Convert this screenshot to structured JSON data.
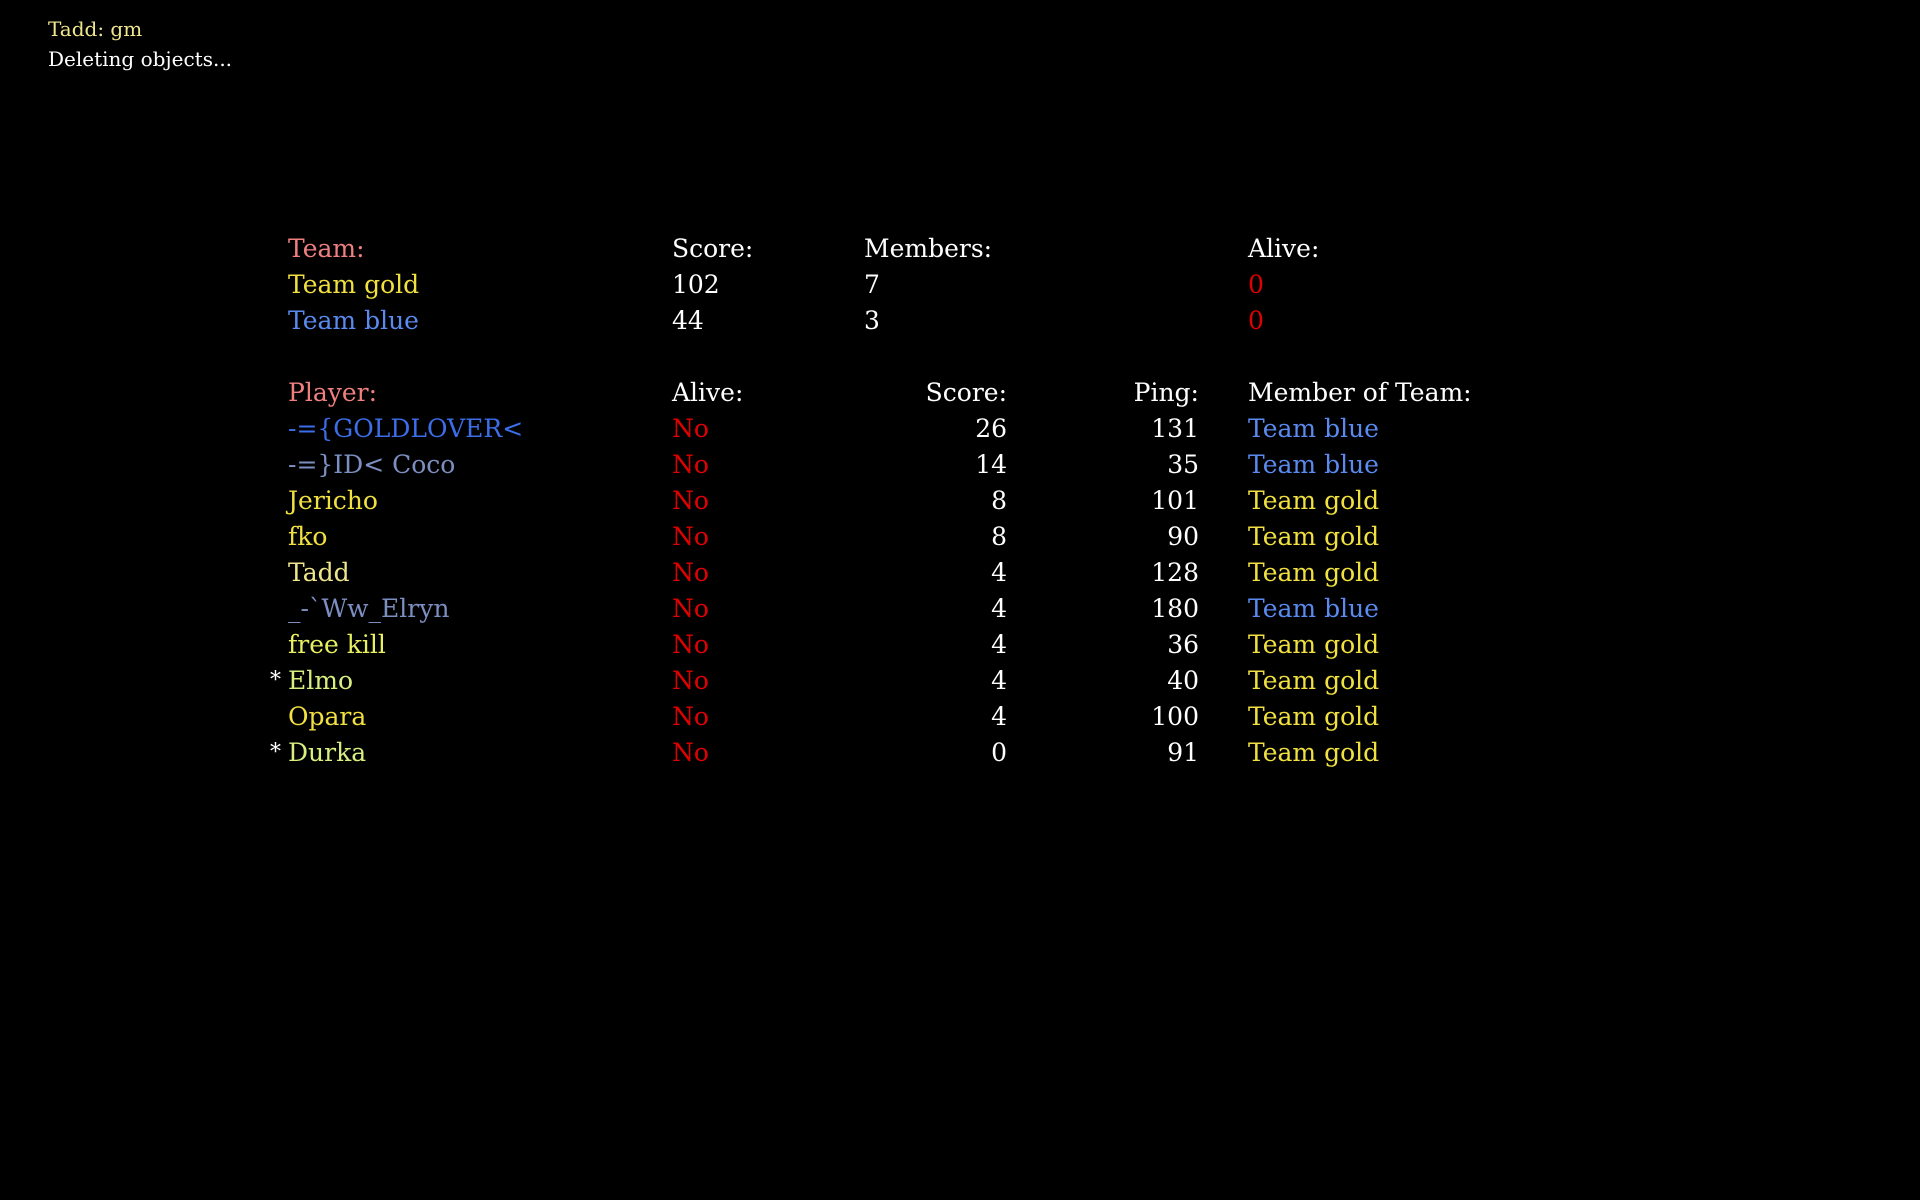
{
  "colors": {
    "header_label": "#f08080",
    "white": "#ffffff",
    "team_gold": "#f0e040",
    "team_blue": "#5a8af0",
    "dead": "#e00000",
    "chat_name": "#f0e68c",
    "chat_text": "#ffffff"
  },
  "chat": {
    "line1": "Tadd: gm",
    "line2": "Deleting objects..."
  },
  "teams": {
    "headers": {
      "team": "Team:",
      "score": "Score:",
      "members": "Members:",
      "alive": "Alive:"
    },
    "rows": [
      {
        "name": "Team gold",
        "score": "102",
        "members": "7",
        "alive": "0",
        "color": "#f0e040"
      },
      {
        "name": "Team blue",
        "score": "44",
        "members": "3",
        "alive": "0",
        "color": "#5a8af0"
      }
    ]
  },
  "players": {
    "headers": {
      "player": "Player:",
      "alive": "Alive:",
      "score": "Score:",
      "ping": "Ping:",
      "team": "Member of Team:"
    },
    "rows": [
      {
        "marker": "",
        "name": "-={GOLDLOVER<",
        "alive": "No",
        "score": "26",
        "ping": "131",
        "team": "Team blue",
        "name_color": "#3b6ee8",
        "team_color": "#5a8af0"
      },
      {
        "marker": "",
        "name": "-=}ID< Coco",
        "alive": "No",
        "score": "14",
        "ping": "35",
        "team": "Team blue",
        "name_color": "#7c8fc0",
        "team_color": "#5a8af0"
      },
      {
        "marker": "",
        "name": "Jericho",
        "alive": "No",
        "score": "8",
        "ping": "101",
        "team": "Team gold",
        "name_color": "#f0e040",
        "team_color": "#f0e040"
      },
      {
        "marker": "",
        "name": "fko",
        "alive": "No",
        "score": "8",
        "ping": "90",
        "team": "Team gold",
        "name_color": "#f0e040",
        "team_color": "#f0e040"
      },
      {
        "marker": "",
        "name": "Tadd",
        "alive": "No",
        "score": "4",
        "ping": "128",
        "team": "Team gold",
        "name_color": "#f0e68c",
        "team_color": "#f0e040"
      },
      {
        "marker": "",
        "name": "_-`Ww_Elryn",
        "alive": "No",
        "score": "4",
        "ping": "180",
        "team": "Team blue",
        "name_color": "#7c8fc0",
        "team_color": "#5a8af0"
      },
      {
        "marker": "",
        "name": "free kill",
        "alive": "No",
        "score": "4",
        "ping": "36",
        "team": "Team gold",
        "name_color": "#e8f060",
        "team_color": "#f0e040"
      },
      {
        "marker": "*",
        "name": "Elmo",
        "alive": "No",
        "score": "4",
        "ping": "40",
        "team": "Team gold",
        "name_color": "#d8f080",
        "team_color": "#f0e040"
      },
      {
        "marker": "",
        "name": "Opara",
        "alive": "No",
        "score": "4",
        "ping": "100",
        "team": "Team gold",
        "name_color": "#f0e040",
        "team_color": "#f0e040"
      },
      {
        "marker": "*",
        "name": "Durka",
        "alive": "No",
        "score": "0",
        "ping": "91",
        "team": "Team gold",
        "name_color": "#d8f080",
        "team_color": "#f0e040"
      }
    ]
  }
}
